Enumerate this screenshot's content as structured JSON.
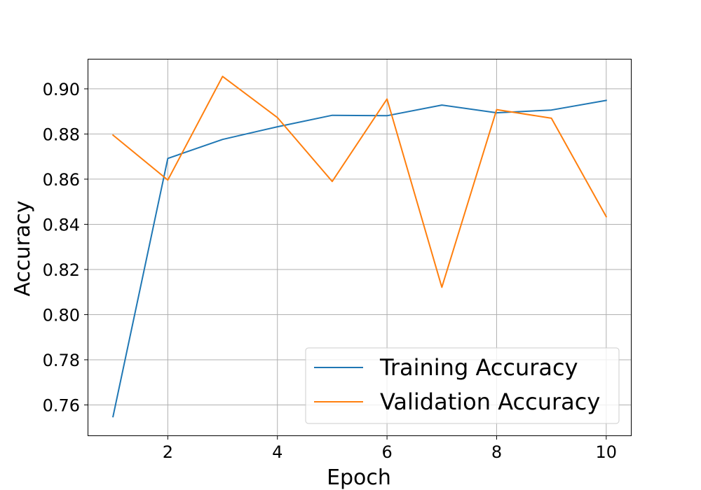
{
  "chart_data": {
    "type": "line",
    "title": "",
    "xlabel": "Epoch",
    "ylabel": "Accuracy",
    "xlim": [
      0.55,
      10.45
    ],
    "ylim": [
      0.7465,
      0.913
    ],
    "xticks": [
      2,
      4,
      6,
      8,
      10
    ],
    "xtick_labels": [
      "2",
      "4",
      "6",
      "8",
      "10"
    ],
    "yticks": [
      0.76,
      0.78,
      0.8,
      0.82,
      0.84,
      0.86,
      0.88,
      0.9
    ],
    "ytick_labels": [
      "0.76",
      "0.78",
      "0.80",
      "0.82",
      "0.84",
      "0.86",
      "0.88",
      "0.90"
    ],
    "grid": true,
    "legend_position": "lower-right",
    "x": [
      1,
      2,
      3,
      4,
      5,
      6,
      7,
      8,
      9,
      10
    ],
    "series": [
      {
        "name": "Training Accuracy",
        "color": "#1f77b4",
        "values": [
          0.7548,
          0.8692,
          0.8776,
          0.8832,
          0.8883,
          0.8881,
          0.8928,
          0.8894,
          0.8906,
          0.8949
        ]
      },
      {
        "name": "Validation Accuracy",
        "color": "#ff7f0e",
        "values": [
          0.8795,
          0.8596,
          0.9055,
          0.8873,
          0.859,
          0.8955,
          0.8121,
          0.8908,
          0.887,
          0.8434
        ]
      }
    ]
  }
}
